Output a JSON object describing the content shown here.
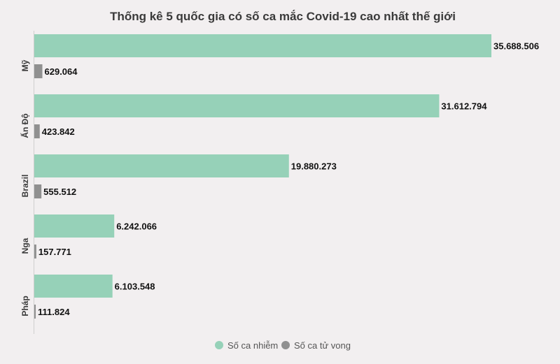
{
  "chart_data": {
    "type": "bar",
    "orientation": "horizontal",
    "title": "Thống kê 5 quốc gia có số ca mắc Covid-19 cao nhất thế giới",
    "categories": [
      "Mỹ",
      "Ấn Độ",
      "Brazil",
      "Nga",
      "Pháp"
    ],
    "series": [
      {
        "name": "Số ca nhiễm",
        "color": "#96d1b8",
        "values": [
          35688506,
          31612794,
          19880273,
          6242066,
          6103548
        ],
        "labels": [
          "35.688.506",
          "31.612.794",
          "19.880.273",
          "6.242.066",
          "6.103.548"
        ]
      },
      {
        "name": "Số ca tử vong",
        "color": "#909090",
        "values": [
          629064,
          423842,
          555512,
          157771,
          111824
        ],
        "labels": [
          "629.064",
          "423.842",
          "555.512",
          "157.771",
          "111.824"
        ]
      }
    ],
    "xlim": [
      0,
      35688506
    ],
    "grid": false,
    "legend_position": "bottom-center"
  }
}
